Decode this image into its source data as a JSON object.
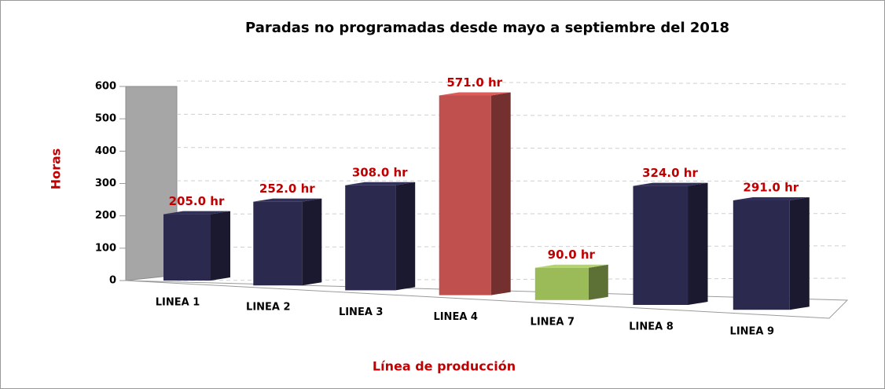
{
  "chart_data": {
    "type": "bar3d",
    "title": "Paradas no programadas desde mayo a septiembre del 2018",
    "y_label": "Horas",
    "x_label": "Línea de producción",
    "categories": [
      "LINEA 1",
      "LINEA 2",
      "LINEA 3",
      "LINEA 4",
      "LINEA 7",
      "LINEA 8",
      "LINEA 9"
    ],
    "values": [
      205,
      252,
      308,
      571,
      90,
      324,
      291
    ],
    "value_labels": [
      "205.0 hr",
      "252.0 hr",
      "308.0 hr",
      "571.0 hr",
      "90.0 hr",
      "324.0 hr",
      "291.0 hr"
    ],
    "colors": [
      "#2b2a4e",
      "#2b2a4e",
      "#2b2a4e",
      "#c0504d",
      "#9bbb59",
      "#2b2a4e",
      "#2b2a4e"
    ],
    "ylim": [
      0,
      600
    ],
    "yticks": [
      0,
      100,
      200,
      300,
      400,
      500,
      600
    ],
    "grid": true
  }
}
